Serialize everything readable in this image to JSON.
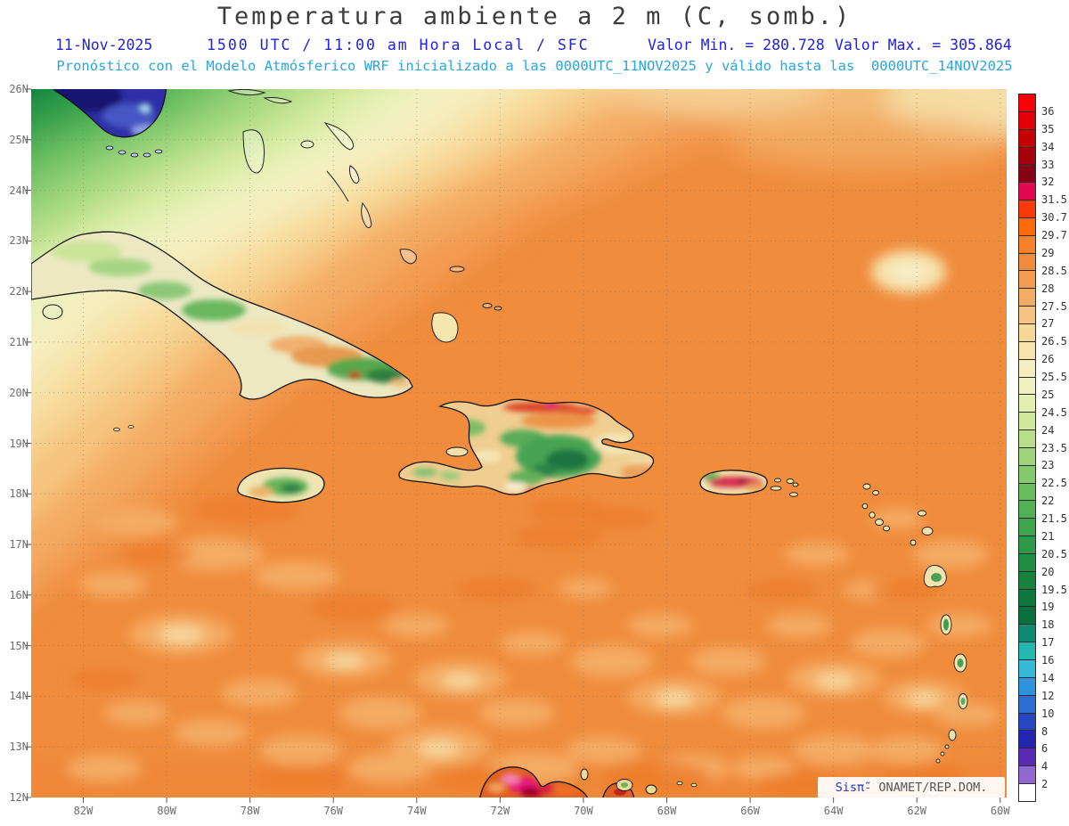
{
  "header": {
    "title": "Temperatura ambiente a 2 m (C, somb.)",
    "date": "11-Nov-2025",
    "time_line": "1500 UTC / 11:00 am Hora Local / SFC",
    "valor_min_label": "Valor Min. = 280.728",
    "valor_max_label": "Valor Max. = 305.864",
    "model_line": "Pronóstico con el Modelo Atmósferico WRF inicializado a las 0000UTC_11NOV2025 y válido hasta las  0000UTC_14NOV2025"
  },
  "watermark": {
    "brand": "Sisπ̃",
    "org": "- ONAMET/REP.DOM."
  },
  "chart_data": {
    "type": "heatmap",
    "title": "Temperatura ambiente a 2 m (C, somb.)",
    "units": "C",
    "valor_min": 280.728,
    "valor_max": 305.864,
    "lat_ticks": [
      "26N",
      "25N",
      "24N",
      "23N",
      "22N",
      "21N",
      "20N",
      "19N",
      "18N",
      "17N",
      "16N",
      "15N",
      "14N",
      "13N",
      "12N"
    ],
    "lon_ticks": [
      "82W",
      "80W",
      "78W",
      "76W",
      "74W",
      "72W",
      "70W",
      "68W",
      "66W",
      "64W",
      "62W",
      "60W"
    ],
    "colorbar": {
      "labels": [
        "36",
        "35",
        "34",
        "33",
        "32",
        "31.5",
        "30.7",
        "29.7",
        "29",
        "28.5",
        "28",
        "27.5",
        "27",
        "26.5",
        "26",
        "25.5",
        "25",
        "24.5",
        "24",
        "23.5",
        "23",
        "22.5",
        "22",
        "21.5",
        "21",
        "20.5",
        "20",
        "19.5",
        "19",
        "18",
        "17",
        "16",
        "14",
        "12",
        "10",
        "8",
        "6",
        "4",
        "2"
      ],
      "colors": [
        "#fb0007",
        "#e10005",
        "#c30004",
        "#a3000c",
        "#870214",
        "#e20850",
        "#f93907",
        "#fd6a0a",
        "#f8822b",
        "#f08c3c",
        "#f29b51",
        "#f4ab63",
        "#f6c47e",
        "#f7d795",
        "#f7e3ab",
        "#f6edbe",
        "#eff2c0",
        "#e2efae",
        "#cfe89c",
        "#b7df8b",
        "#9dd47c",
        "#83c96e",
        "#69bd60",
        "#52b156",
        "#3da54e",
        "#2c9a48",
        "#1f8e43",
        "#15833f",
        "#0e783c",
        "#0a6f3e",
        "#0e8a72",
        "#25b7b2",
        "#35b9d6",
        "#2e93dc",
        "#2b6ed2",
        "#2747c2",
        "#2326ae",
        "#5a2ab4",
        "#9068d0",
        "#ffffff"
      ]
    }
  }
}
